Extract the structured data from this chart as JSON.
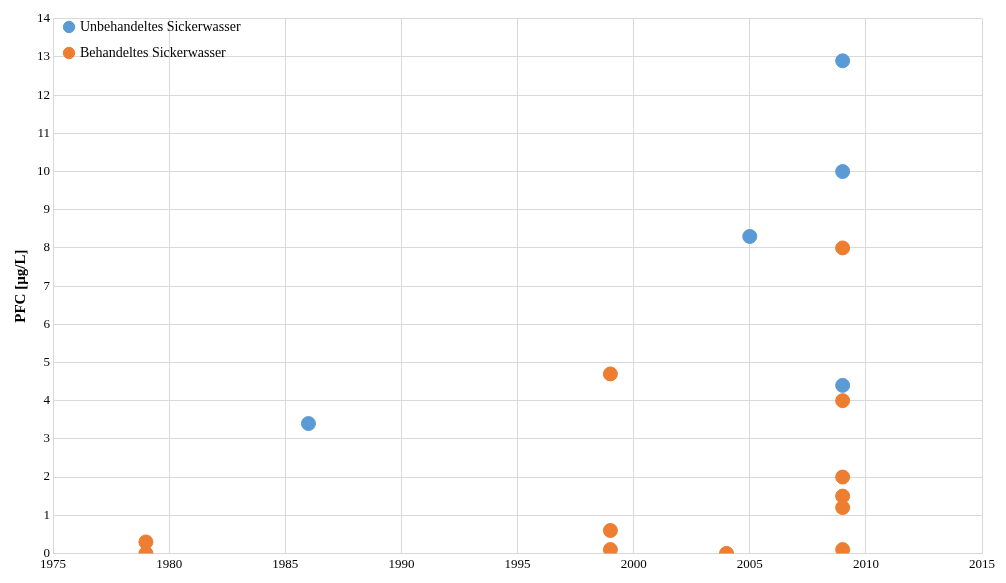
{
  "chart_data": {
    "type": "scatter",
    "ylabel": "PFC [µg/L]",
    "xlim": [
      1975,
      2015
    ],
    "xticks": [
      1975,
      1980,
      1985,
      1990,
      1995,
      2000,
      2005,
      2010,
      2015
    ],
    "ylim": [
      0,
      14
    ],
    "yticks": [
      0,
      1,
      2,
      3,
      4,
      5,
      6,
      7,
      8,
      9,
      10,
      11,
      12,
      13,
      14
    ],
    "grid": true,
    "legend": "top left",
    "marker": "circle",
    "series": [
      {
        "name": "Unbehandeltes Sickerwasser",
        "color": "#5b9bd5",
        "x": [
          1986,
          2005,
          2009,
          2009,
          2009
        ],
        "values": [
          3.4,
          8.3,
          12.9,
          10.0,
          4.4
        ]
      },
      {
        "name": "Behandeltes Sickerwasser",
        "color": "#ed7d31",
        "x": [
          1979,
          1979,
          1999,
          1999,
          1999,
          2004,
          2009,
          2009,
          2009,
          2009,
          2009,
          2009
        ],
        "values": [
          0.3,
          0.0,
          4.7,
          0.6,
          0.1,
          0.0,
          8.0,
          4.0,
          2.0,
          1.5,
          1.2,
          0.1
        ]
      }
    ]
  }
}
